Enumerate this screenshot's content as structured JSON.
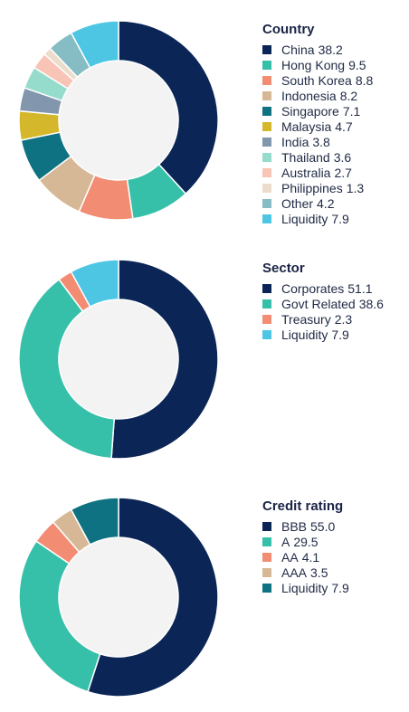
{
  "chart_data": [
    {
      "type": "pie",
      "title": "Country",
      "categories": [
        "China",
        "Hong Kong",
        "South Korea",
        "Indonesia",
        "Singapore",
        "Malaysia",
        "India",
        "Thailand",
        "Australia",
        "Philippines",
        "Other",
        "Liquidity"
      ],
      "values": [
        38.2,
        9.5,
        8.8,
        8.2,
        7.1,
        4.7,
        3.8,
        3.6,
        2.7,
        1.3,
        4.2,
        7.9
      ],
      "colors": [
        "#0b2656",
        "#37c0a9",
        "#f28c73",
        "#d7b896",
        "#0f7282",
        "#d4b72a",
        "#8296ad",
        "#96dccd",
        "#f8c4b6",
        "#ecdccb",
        "#86bcc4",
        "#4dc6e4"
      ],
      "legend": "right"
    },
    {
      "type": "pie",
      "title": "Sector",
      "categories": [
        "Corporates",
        "Govt Related",
        "Treasury",
        "Liquidity"
      ],
      "values": [
        51.1,
        38.6,
        2.3,
        7.9
      ],
      "colors": [
        "#0b2656",
        "#37c0a9",
        "#f28c73",
        "#4dc6e4"
      ],
      "legend": "right"
    },
    {
      "type": "pie",
      "title": "Credit rating",
      "categories": [
        "BBB",
        "A",
        "AA",
        "AAA",
        "Liquidity"
      ],
      "values": [
        55.0,
        29.5,
        4.1,
        3.5,
        7.9
      ],
      "colors": [
        "#0b2656",
        "#37c0a9",
        "#f28c73",
        "#d7b896",
        "#0f7282"
      ],
      "legend": "right"
    }
  ]
}
